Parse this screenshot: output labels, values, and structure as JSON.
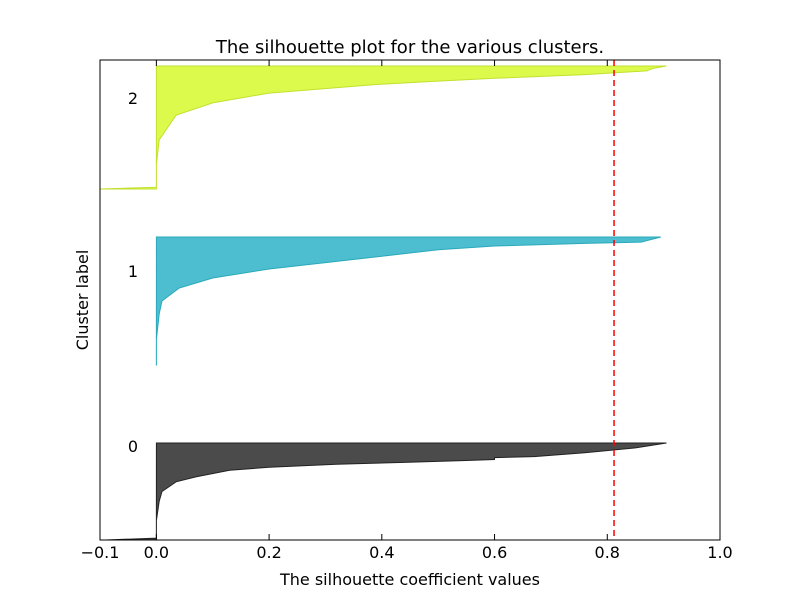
{
  "chart_data": {
    "type": "area",
    "title": "The silhouette plot for the various clusters.",
    "xlabel": "The silhouette coefficient values",
    "ylabel": "Cluster label",
    "xlim": [
      -0.1,
      1.0
    ],
    "xticks": [
      -0.1,
      0.0,
      0.2,
      0.4,
      0.6,
      0.8,
      1.0
    ],
    "xtick_labels": [
      "−0.1",
      "0.0",
      "0.2",
      "0.4",
      "0.6",
      "0.8",
      "1.0"
    ],
    "average_line": {
      "value": 0.812,
      "color": "#ff0000",
      "style": "dashed"
    },
    "clusters": [
      {
        "label": "0",
        "color": "#4b4b4b",
        "edge_color": "#222222",
        "profile": [
          [
            0.0,
            -0.09
          ],
          [
            0.02,
            0.0
          ],
          [
            0.2,
            0.0
          ],
          [
            0.4,
            0.005
          ],
          [
            0.5,
            0.01
          ],
          [
            0.6,
            0.035
          ],
          [
            0.65,
            0.07
          ],
          [
            0.72,
            0.13
          ],
          [
            0.75,
            0.2
          ],
          [
            0.78,
            0.32
          ],
          [
            0.8,
            0.44
          ],
          [
            0.82,
            0.55
          ],
          [
            0.83,
            0.6
          ],
          [
            0.84,
            0.6
          ],
          [
            0.85,
            0.6
          ],
          [
            0.86,
            0.67
          ],
          [
            0.9,
            0.76
          ],
          [
            0.95,
            0.85
          ],
          [
            1.0,
            0.905
          ]
        ]
      },
      {
        "label": "1",
        "color": "#4cbecf",
        "edge_color": "#2aa9bb",
        "profile": [
          [
            0.0,
            0.0
          ],
          [
            0.2,
            0.0
          ],
          [
            0.4,
            0.005
          ],
          [
            0.5,
            0.01
          ],
          [
            0.6,
            0.04
          ],
          [
            0.68,
            0.1
          ],
          [
            0.75,
            0.2
          ],
          [
            0.8,
            0.3
          ],
          [
            0.85,
            0.4
          ],
          [
            0.9,
            0.5
          ],
          [
            0.93,
            0.6
          ],
          [
            0.95,
            0.76
          ],
          [
            0.96,
            0.86
          ],
          [
            1.0,
            0.895
          ]
        ]
      },
      {
        "label": "2",
        "color": "#dcfa4b",
        "edge_color": "#c2e02f",
        "profile": [
          [
            0.0,
            -0.1
          ],
          [
            0.015,
            0.0
          ],
          [
            0.2,
            0.0
          ],
          [
            0.4,
            0.005
          ],
          [
            0.6,
            0.035
          ],
          [
            0.7,
            0.1
          ],
          [
            0.78,
            0.2
          ],
          [
            0.82,
            0.31
          ],
          [
            0.85,
            0.39
          ],
          [
            0.87,
            0.47
          ],
          [
            0.9,
            0.6
          ],
          [
            0.93,
            0.76
          ],
          [
            0.96,
            0.87
          ],
          [
            0.98,
            0.88
          ],
          [
            1.0,
            0.905
          ]
        ]
      }
    ],
    "grid": false
  }
}
